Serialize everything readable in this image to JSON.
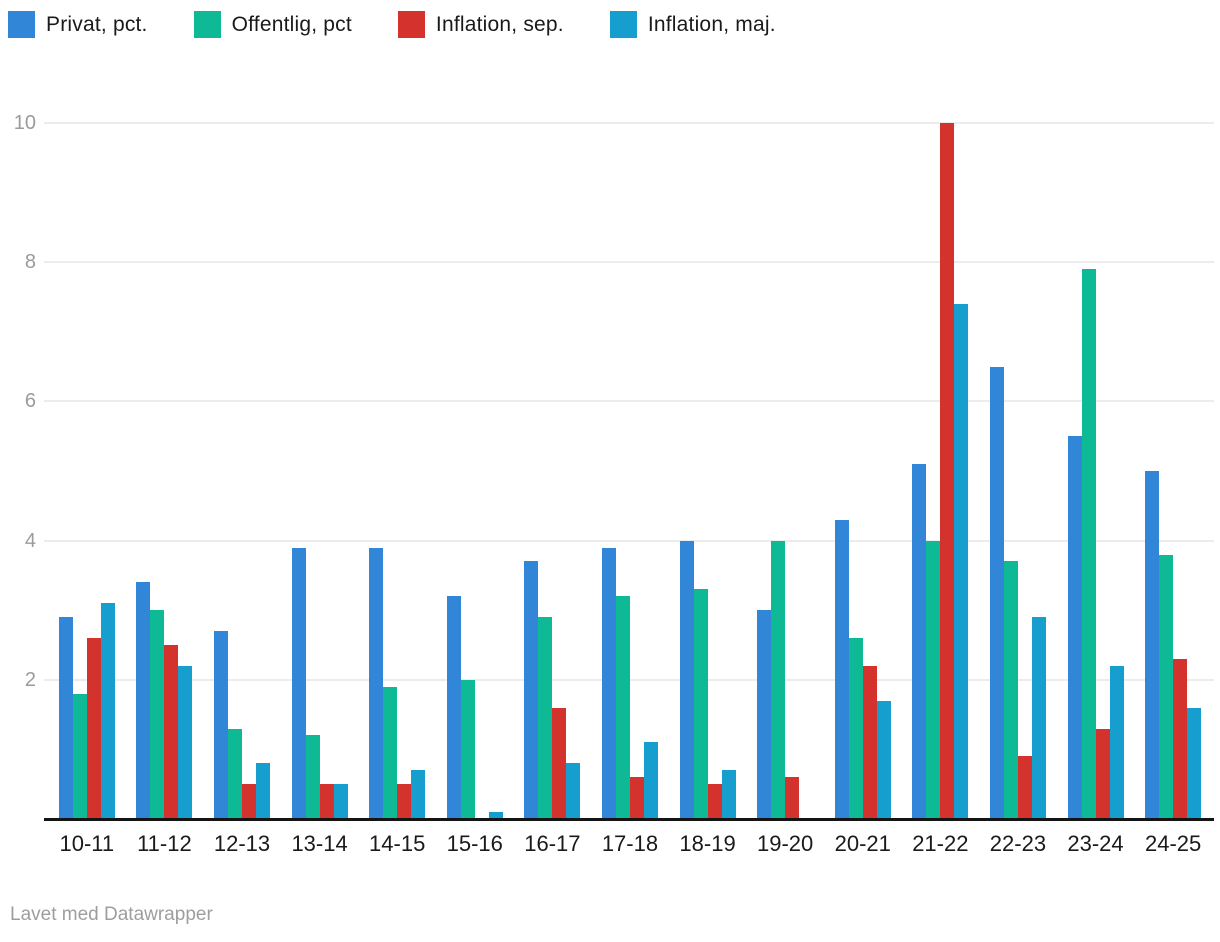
{
  "chart_data": {
    "type": "bar",
    "title": "",
    "xlabel": "",
    "ylabel": "",
    "ylim": [
      0,
      10
    ],
    "yticks": [
      2,
      4,
      6,
      8,
      10
    ],
    "grid": true,
    "legend_position": "top",
    "categories": [
      "10-11",
      "11-12",
      "12-13",
      "13-14",
      "14-15",
      "15-16",
      "16-17",
      "17-18",
      "18-19",
      "19-20",
      "20-21",
      "21-22",
      "22-23",
      "23-24",
      "24-25"
    ],
    "series": [
      {
        "name": "Privat, pct.",
        "color": "#3286d8",
        "values": [
          2.9,
          3.4,
          2.7,
          3.9,
          3.9,
          3.2,
          3.7,
          3.9,
          4.0,
          3.0,
          4.3,
          5.1,
          6.5,
          5.5,
          5.0
        ]
      },
      {
        "name": "Offentlig, pct",
        "color": "#0eba96",
        "values": [
          1.8,
          3.0,
          1.3,
          1.2,
          1.9,
          2.0,
          2.9,
          3.2,
          3.3,
          4.0,
          2.6,
          4.0,
          3.7,
          7.9,
          3.8
        ]
      },
      {
        "name": "Inflation, sep.",
        "color": "#d3332c",
        "values": [
          2.6,
          2.5,
          0.5,
          0.5,
          0.5,
          0,
          1.6,
          0.6,
          0.5,
          0.6,
          2.2,
          10.0,
          0.9,
          1.3,
          2.3
        ]
      },
      {
        "name": "Inflation, maj.",
        "color": "#169fce",
        "values": [
          3.1,
          2.2,
          0.8,
          0.5,
          0.7,
          0.1,
          0.8,
          1.1,
          0.7,
          0,
          1.7,
          7.4,
          2.9,
          2.2,
          1.6
        ]
      }
    ]
  },
  "axis": {
    "tick_labels": [
      "2",
      "4",
      "6",
      "8",
      "10"
    ]
  },
  "footer": {
    "credit": "Lavet med Datawrapper"
  }
}
